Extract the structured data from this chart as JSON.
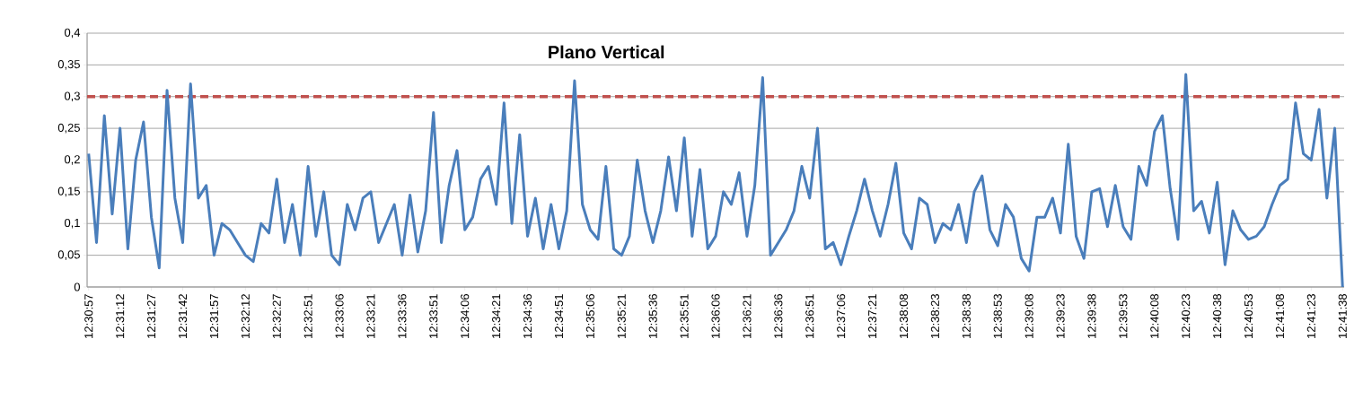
{
  "chart_data": {
    "type": "line",
    "title": "Plano Vertical",
    "categories": [
      "12:30:57",
      null,
      null,
      null,
      "12:31:12",
      null,
      null,
      null,
      "12:31:27",
      null,
      null,
      null,
      "12:31:42",
      null,
      null,
      null,
      "12:31:57",
      null,
      null,
      null,
      "12:32:12",
      null,
      null,
      null,
      "12:32:27",
      null,
      null,
      null,
      "12:32:51",
      null,
      null,
      null,
      "12:33:06",
      null,
      null,
      null,
      "12:33:21",
      null,
      null,
      null,
      "12:33:36",
      null,
      null,
      null,
      "12:33:51",
      null,
      null,
      null,
      "12:34:06",
      null,
      null,
      null,
      "12:34:21",
      null,
      null,
      null,
      "12:34:36",
      null,
      null,
      null,
      "12:34:51",
      null,
      null,
      null,
      "12:35:06",
      null,
      null,
      null,
      "12:35:21",
      null,
      null,
      null,
      "12:35:36",
      null,
      null,
      null,
      "12:35:51",
      null,
      null,
      null,
      "12:36:06",
      null,
      null,
      null,
      "12:36:21",
      null,
      null,
      null,
      "12:36:36",
      null,
      null,
      null,
      "12:36:51",
      null,
      null,
      null,
      "12:37:06",
      null,
      null,
      null,
      "12:37:21",
      null,
      null,
      null,
      "12:38:08",
      null,
      null,
      null,
      "12:38:23",
      null,
      null,
      null,
      "12:38:38",
      null,
      null,
      null,
      "12:38:53",
      null,
      null,
      null,
      "12:39:08",
      null,
      null,
      null,
      "12:39:23",
      null,
      null,
      null,
      "12:39:38",
      null,
      null,
      null,
      "12:39:53",
      null,
      null,
      null,
      "12:40:08",
      null,
      null,
      null,
      "12:40:23",
      null,
      null,
      null,
      "12:40:38",
      null,
      null,
      null,
      "12:40:53",
      null,
      null,
      null,
      "12:41:08",
      null,
      null,
      null,
      "12:41:23",
      null,
      null,
      null,
      "12:41:38"
    ],
    "series": [
      {
        "color": "#4a7ebb",
        "values": [
          0.21,
          0.07,
          0.27,
          0.115,
          0.25,
          0.06,
          0.2,
          0.26,
          0.11,
          0.03,
          0.31,
          0.14,
          0.07,
          0.32,
          0.14,
          0.16,
          0.05,
          0.1,
          0.09,
          0.07,
          0.05,
          0.04,
          0.1,
          0.085,
          0.17,
          0.07,
          0.13,
          0.05,
          0.19,
          0.08,
          0.15,
          0.05,
          0.035,
          0.13,
          0.09,
          0.14,
          0.15,
          0.07,
          0.1,
          0.13,
          0.05,
          0.145,
          0.055,
          0.12,
          0.275,
          0.07,
          0.16,
          0.215,
          0.09,
          0.11,
          0.17,
          0.19,
          0.13,
          0.29,
          0.1,
          0.24,
          0.08,
          0.14,
          0.06,
          0.13,
          0.06,
          0.12,
          0.325,
          0.13,
          0.09,
          0.075,
          0.19,
          0.06,
          0.05,
          0.08,
          0.2,
          0.12,
          0.07,
          0.12,
          0.205,
          0.12,
          0.235,
          0.08,
          0.185,
          0.06,
          0.08,
          0.15,
          0.13,
          0.18,
          0.08,
          0.16,
          0.33,
          0.05,
          0.07,
          0.09,
          0.12,
          0.19,
          0.14,
          0.25,
          0.06,
          0.07,
          0.035,
          0.08,
          0.12,
          0.17,
          0.12,
          0.08,
          0.13,
          0.195,
          0.085,
          0.06,
          0.14,
          0.13,
          0.07,
          0.1,
          0.09,
          0.13,
          0.07,
          0.15,
          0.175,
          0.09,
          0.065,
          0.13,
          0.11,
          0.045,
          0.025,
          0.11,
          0.11,
          0.14,
          0.085,
          0.225,
          0.08,
          0.045,
          0.15,
          0.155,
          0.095,
          0.16,
          0.095,
          0.075,
          0.19,
          0.16,
          0.245,
          0.27,
          0.155,
          0.075,
          0.335,
          0.12,
          0.135,
          0.085,
          0.165,
          0.035,
          0.12,
          0.09,
          0.075,
          0.08,
          0.095,
          0.13,
          0.16,
          0.17,
          0.29,
          0.21,
          0.2,
          0.28,
          0.14,
          0.25,
          0
        ]
      }
    ],
    "ylim": [
      0,
      0.4
    ],
    "yticks": [
      0,
      {
        "value": 0.05,
        "label": "0,05"
      },
      {
        "value": 0.1,
        "label": "0,1"
      },
      {
        "value": 0.15,
        "label": "0,15"
      },
      {
        "value": 0.2,
        "label": "0,2"
      },
      {
        "value": 0.25,
        "label": "0,25"
      },
      {
        "value": 0.3,
        "label": "0,3"
      },
      {
        "value": 0.35,
        "label": "0,35"
      },
      {
        "value": 0.4,
        "label": "0,4"
      }
    ],
    "ref_lines": [
      {
        "axis": "y",
        "value": 0.3,
        "color": "#c0504d",
        "line_style": "dashed"
      }
    ],
    "grid": "y",
    "legend": false,
    "marker": "none",
    "line_style": "solid"
  }
}
